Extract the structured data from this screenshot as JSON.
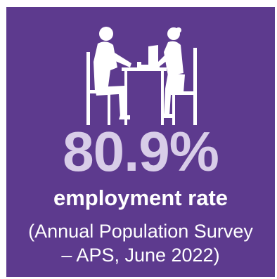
{
  "infographic": {
    "icon": "interview-people-at-table-icon",
    "value": "80.9%",
    "label": "employment rate",
    "source_line_1": "(Annual Population Survey",
    "source_line_2": "– APS, June 2022)"
  },
  "colors": {
    "background": "#5d3a8e",
    "value_text": "#d8cde8",
    "text": "#ffffff"
  }
}
